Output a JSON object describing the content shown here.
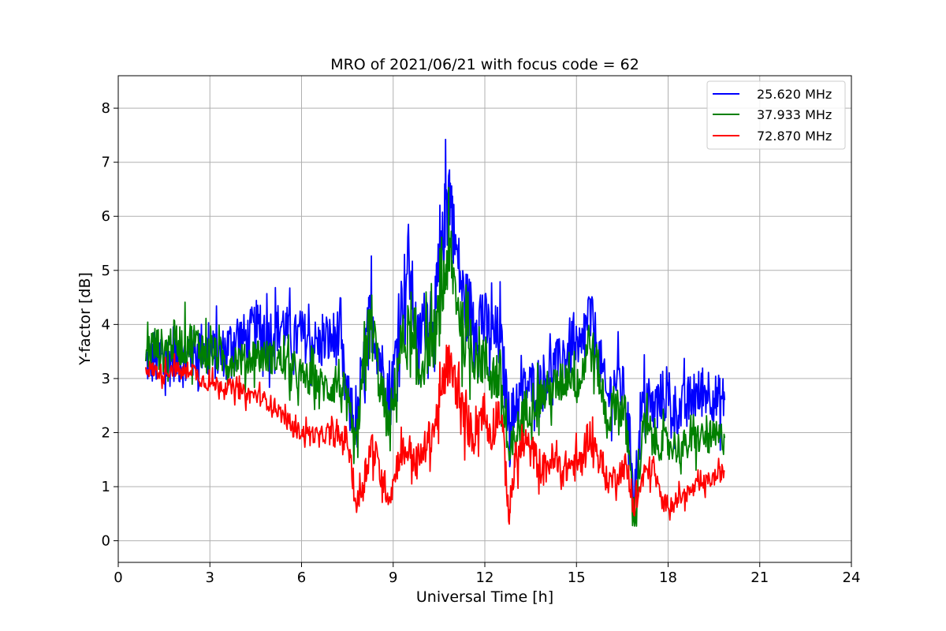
{
  "chart_data": {
    "type": "line",
    "title": "MRO of 2021/06/21 with focus code = 62",
    "xlabel": "Universal Time [h]",
    "ylabel": "Y-factor [dB]",
    "xlim": [
      0,
      24
    ],
    "ylim": [
      -0.4,
      8.6
    ],
    "xticks": [
      0,
      3,
      6,
      9,
      12,
      15,
      18,
      21,
      24
    ],
    "yticks": [
      0,
      1,
      2,
      3,
      4,
      5,
      6,
      7,
      8
    ],
    "grid": true,
    "legend_position": "top-right",
    "series": [
      {
        "name": "25.620 MHz",
        "color": "#0000ff",
        "x": [
          0.9,
          1.2,
          1.5,
          1.8,
          2.1,
          2.4,
          2.7,
          3.0,
          3.3,
          3.6,
          3.9,
          4.2,
          4.5,
          4.8,
          5.1,
          5.4,
          5.7,
          6.0,
          6.3,
          6.6,
          6.9,
          7.2,
          7.5,
          7.8,
          8.1,
          8.3,
          8.6,
          8.9,
          9.2,
          9.5,
          9.8,
          10.1,
          10.4,
          10.6,
          10.8,
          11.0,
          11.3,
          11.6,
          11.9,
          12.2,
          12.5,
          12.8,
          13.0,
          13.3,
          13.6,
          13.9,
          14.2,
          14.5,
          14.8,
          15.1,
          15.4,
          15.7,
          16.0,
          16.3,
          16.6,
          16.9,
          17.2,
          17.5,
          17.8,
          18.1,
          18.4,
          18.7,
          19.0,
          19.3,
          19.6,
          19.85
        ],
        "y": [
          3.3,
          3.4,
          3.2,
          3.5,
          3.3,
          3.4,
          3.6,
          3.5,
          3.4,
          3.6,
          3.8,
          3.7,
          3.9,
          3.8,
          3.9,
          4.0,
          3.7,
          3.8,
          3.7,
          3.6,
          3.7,
          3.8,
          2.6,
          2.0,
          3.6,
          4.2,
          3.3,
          2.5,
          4.1,
          5.2,
          3.6,
          4.2,
          4.4,
          5.3,
          6.8,
          5.6,
          4.5,
          4.2,
          4.1,
          3.8,
          3.7,
          2.2,
          2.5,
          2.8,
          2.9,
          3.0,
          3.2,
          3.3,
          3.6,
          3.3,
          4.2,
          3.6,
          2.6,
          3.0,
          2.7,
          1.0,
          2.6,
          2.4,
          2.7,
          2.5,
          2.4,
          2.6,
          2.7,
          2.8,
          2.6,
          2.6
        ],
        "spread": [
          0.6,
          0.7,
          0.7,
          0.7,
          0.6,
          0.6,
          0.6,
          0.6,
          0.6,
          0.6,
          0.6,
          0.6,
          0.7,
          0.7,
          0.6,
          0.6,
          0.6,
          0.6,
          0.6,
          0.6,
          0.6,
          0.7,
          0.7,
          0.6,
          0.7,
          0.9,
          0.7,
          0.6,
          0.8,
          0.9,
          0.8,
          0.8,
          0.8,
          0.9,
          0.9,
          0.8,
          0.8,
          0.8,
          0.8,
          0.8,
          0.8,
          0.6,
          0.6,
          0.6,
          0.6,
          0.6,
          0.6,
          0.6,
          0.7,
          0.7,
          0.7,
          0.6,
          0.6,
          0.6,
          0.6,
          0.5,
          0.6,
          0.6,
          0.6,
          0.6,
          0.6,
          0.6,
          0.6,
          0.6,
          0.6,
          0.6
        ]
      },
      {
        "name": "37.933 MHz",
        "color": "#008000",
        "x": [
          0.9,
          1.2,
          1.5,
          1.8,
          2.1,
          2.4,
          2.7,
          3.0,
          3.3,
          3.6,
          3.9,
          4.2,
          4.5,
          4.8,
          5.1,
          5.4,
          5.7,
          6.0,
          6.3,
          6.6,
          6.9,
          7.2,
          7.5,
          7.8,
          8.1,
          8.3,
          8.6,
          8.9,
          9.2,
          9.5,
          9.8,
          10.1,
          10.4,
          10.6,
          10.8,
          11.0,
          11.3,
          11.6,
          11.9,
          12.2,
          12.5,
          12.8,
          13.0,
          13.3,
          13.6,
          13.9,
          14.2,
          14.5,
          14.8,
          15.1,
          15.4,
          15.7,
          16.0,
          16.3,
          16.6,
          16.9,
          17.2,
          17.5,
          17.8,
          18.1,
          18.4,
          18.7,
          19.0,
          19.3,
          19.6,
          19.85
        ],
        "y": [
          3.5,
          3.6,
          3.5,
          3.7,
          3.6,
          3.7,
          3.6,
          3.5,
          3.4,
          3.3,
          3.4,
          3.3,
          3.5,
          3.4,
          3.4,
          3.3,
          3.1,
          3.0,
          3.0,
          2.9,
          2.8,
          3.0,
          2.4,
          1.6,
          3.6,
          4.0,
          2.8,
          2.0,
          3.5,
          3.8,
          3.0,
          3.6,
          3.8,
          4.5,
          5.3,
          4.8,
          3.8,
          3.5,
          3.4,
          3.1,
          3.0,
          1.5,
          1.9,
          2.4,
          2.6,
          2.7,
          2.8,
          2.9,
          3.2,
          2.9,
          3.7,
          3.2,
          2.2,
          2.6,
          2.3,
          0.4,
          2.1,
          1.9,
          1.8,
          1.8,
          1.7,
          1.8,
          1.9,
          1.9,
          1.9,
          1.9
        ],
        "spread": [
          0.5,
          0.5,
          0.5,
          0.5,
          0.5,
          0.5,
          0.5,
          0.4,
          0.4,
          0.4,
          0.4,
          0.4,
          0.4,
          0.4,
          0.4,
          0.4,
          0.4,
          0.4,
          0.4,
          0.4,
          0.4,
          0.6,
          0.6,
          0.5,
          0.7,
          0.8,
          0.6,
          0.5,
          0.7,
          0.8,
          0.7,
          0.7,
          0.7,
          0.8,
          0.8,
          0.7,
          0.7,
          0.7,
          0.7,
          0.7,
          0.7,
          0.5,
          0.5,
          0.5,
          0.5,
          0.5,
          0.5,
          0.5,
          0.6,
          0.6,
          0.6,
          0.5,
          0.5,
          0.5,
          0.5,
          0.4,
          0.5,
          0.5,
          0.4,
          0.4,
          0.4,
          0.4,
          0.4,
          0.4,
          0.4,
          0.4
        ]
      },
      {
        "name": "72.870 MHz",
        "color": "#ff0000",
        "x": [
          0.9,
          1.2,
          1.5,
          1.8,
          2.1,
          2.4,
          2.7,
          3.0,
          3.3,
          3.6,
          3.9,
          4.2,
          4.5,
          4.8,
          5.1,
          5.4,
          5.7,
          6.0,
          6.3,
          6.6,
          6.9,
          7.2,
          7.5,
          7.8,
          8.1,
          8.3,
          8.6,
          8.9,
          9.2,
          9.5,
          9.8,
          10.1,
          10.4,
          10.6,
          10.8,
          11.0,
          11.3,
          11.6,
          11.9,
          12.2,
          12.5,
          12.8,
          13.0,
          13.3,
          13.6,
          13.9,
          14.2,
          14.5,
          14.8,
          15.1,
          15.4,
          15.7,
          16.0,
          16.3,
          16.6,
          16.9,
          17.2,
          17.5,
          17.8,
          18.1,
          18.4,
          18.7,
          19.0,
          19.3,
          19.6,
          19.85
        ],
        "y": [
          3.2,
          3.15,
          3.1,
          3.2,
          3.1,
          3.2,
          3.0,
          2.9,
          2.9,
          2.85,
          2.8,
          2.7,
          2.7,
          2.6,
          2.5,
          2.3,
          2.1,
          2.0,
          2.0,
          1.9,
          2.0,
          1.9,
          1.9,
          0.6,
          1.3,
          1.8,
          1.2,
          0.8,
          1.6,
          1.7,
          1.4,
          1.8,
          2.2,
          2.8,
          3.3,
          3.0,
          2.3,
          2.0,
          2.4,
          2.0,
          2.5,
          0.5,
          1.5,
          1.8,
          1.6,
          1.3,
          1.5,
          1.3,
          1.4,
          1.4,
          2.0,
          1.6,
          1.1,
          1.2,
          1.4,
          0.6,
          1.2,
          1.4,
          0.7,
          0.7,
          0.8,
          0.9,
          1.0,
          1.1,
          1.2,
          1.3
        ],
        "spread": [
          0.2,
          0.2,
          0.2,
          0.2,
          0.2,
          0.2,
          0.2,
          0.2,
          0.2,
          0.2,
          0.2,
          0.2,
          0.2,
          0.2,
          0.2,
          0.2,
          0.2,
          0.2,
          0.2,
          0.2,
          0.2,
          0.3,
          0.3,
          0.3,
          0.4,
          0.4,
          0.4,
          0.3,
          0.4,
          0.4,
          0.4,
          0.4,
          0.5,
          0.5,
          0.5,
          0.5,
          0.5,
          0.5,
          0.5,
          0.5,
          0.5,
          0.4,
          0.4,
          0.4,
          0.4,
          0.4,
          0.4,
          0.4,
          0.4,
          0.4,
          0.4,
          0.4,
          0.3,
          0.3,
          0.3,
          0.3,
          0.3,
          0.3,
          0.2,
          0.2,
          0.2,
          0.2,
          0.2,
          0.2,
          0.2,
          0.2
        ]
      }
    ]
  }
}
